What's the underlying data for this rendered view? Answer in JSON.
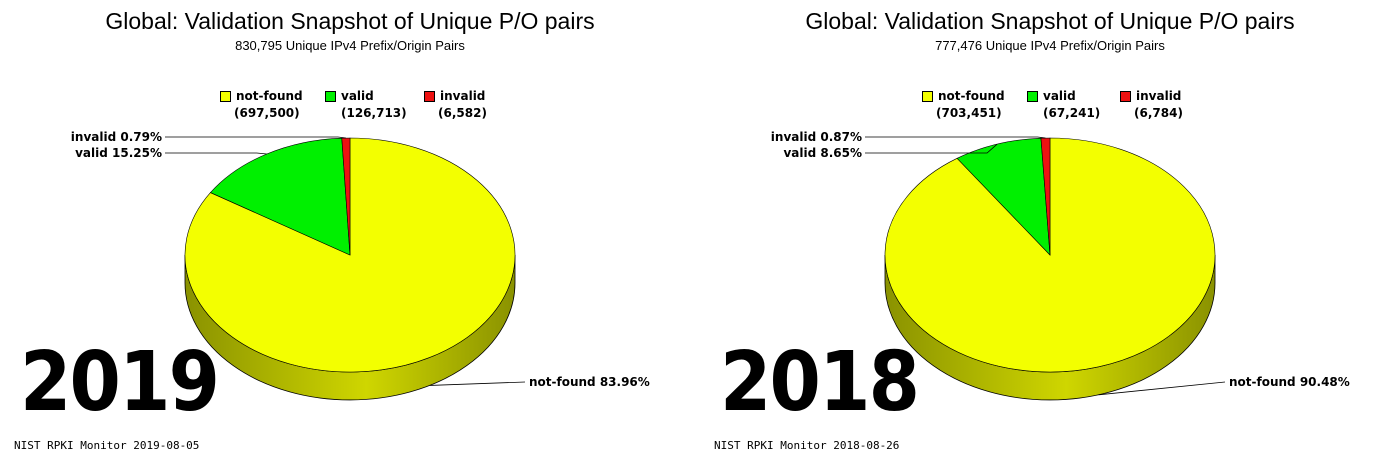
{
  "colors": {
    "not_found": "#f3ff00",
    "not_found_side": "#8a9200",
    "valid": "#00f000",
    "invalid": "#ee1111",
    "invalid_side": "#991010",
    "outline": "#000000"
  },
  "chart_data": [
    {
      "type": "pie",
      "title": "Global: Validation Snapshot of Unique P/O pairs",
      "subtitle": "830,795 Unique IPv4 Prefix/Origin Pairs",
      "legend_position": "top",
      "slices": [
        {
          "name": "not-found",
          "count": "(697,500)",
          "value": 697500,
          "percent": 83.96,
          "callout": "not-found 83.96%"
        },
        {
          "name": "valid",
          "count": "(126,713)",
          "value": 126713,
          "percent": 15.25,
          "callout": "valid 15.25%"
        },
        {
          "name": "invalid",
          "count": "(6,582)",
          "value": 6582,
          "percent": 0.79,
          "callout": "invalid 0.79%"
        }
      ],
      "year_label": "2019",
      "footer": "NIST RPKI Monitor 2019-08-05"
    },
    {
      "type": "pie",
      "title": "Global: Validation Snapshot of Unique P/O pairs",
      "subtitle": "777,476 Unique IPv4 Prefix/Origin Pairs",
      "legend_position": "top",
      "slices": [
        {
          "name": "not-found",
          "count": "(703,451)",
          "value": 703451,
          "percent": 90.48,
          "callout": "not-found 90.48%"
        },
        {
          "name": "valid",
          "count": "(67,241)",
          "value": 67241,
          "percent": 8.65,
          "callout": "valid 8.65%"
        },
        {
          "name": "invalid",
          "count": "(6,784)",
          "value": 6784,
          "percent": 0.87,
          "callout": "invalid 0.87%"
        }
      ],
      "year_label": "2018",
      "footer": "NIST RPKI Monitor 2018-08-26"
    }
  ]
}
